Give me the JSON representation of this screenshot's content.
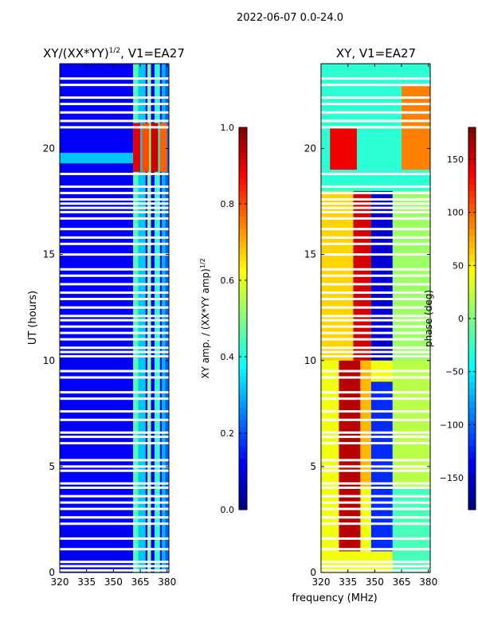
{
  "figure_title": "2022-06-07 0.0-24.0",
  "chart_data": [
    {
      "type": "heatmap",
      "title": "XY/(XX*YY)",
      "title_exponent": "1/2",
      "title_suffix": ", V1=EA27",
      "xlabel": "",
      "ylabel": "UT (hours)",
      "xlim": [
        320,
        381
      ],
      "ylim": [
        0,
        24
      ],
      "xticks": [
        "320",
        "335",
        "350",
        "365",
        "380"
      ],
      "xtick_values": [
        320,
        335,
        350,
        365,
        380
      ],
      "yticks": [
        "0",
        "5",
        "10",
        "15",
        "20"
      ],
      "ytick_values": [
        0,
        5,
        10,
        15,
        20
      ],
      "colorbar": {
        "label": "XY amp. / (XX*YY amp)",
        "label_exponent": "1/2",
        "range": [
          0.0,
          1.0
        ],
        "ticks": [
          "0.0",
          "0.2",
          "0.4",
          "0.6",
          "0.8",
          "1.0"
        ],
        "tick_values": [
          0.0,
          0.2,
          0.4,
          0.6,
          0.8,
          1.0
        ],
        "colormap": "jet"
      },
      "flagged_hours": [
        0.1,
        0.3,
        0.5,
        1.1,
        1.6,
        2.3,
        2.6,
        3.0,
        3.3,
        3.6,
        4.0,
        4.2,
        4.8,
        5.0,
        5.3,
        6.1,
        6.4,
        6.6,
        7.2,
        7.6,
        8.2,
        8.5,
        9.2,
        9.5,
        10.2,
        10.4,
        10.6,
        11.0,
        11.3,
        11.6,
        11.9,
        12.1,
        12.5,
        12.9,
        13.2,
        13.6,
        14.0,
        14.3,
        15.0,
        15.5,
        15.8,
        16.2,
        16.7,
        17.0,
        17.2,
        17.4,
        17.6,
        17.9,
        18.2,
        18.8,
        21.0,
        21.3,
        21.7,
        22.1,
        22.4,
        23.0,
        23.3
      ],
      "bands": [
        {
          "f0": 320,
          "f1": 381,
          "value": 0.12
        },
        {
          "f0": 361,
          "f1": 364,
          "value": 0.45
        },
        {
          "f0": 364,
          "f1": 368,
          "value": 0.32
        },
        {
          "f0": 369,
          "f1": 371,
          "value": 0.5
        },
        {
          "f0": 373,
          "f1": 376,
          "value": 0.42
        },
        {
          "f0": 377,
          "f1": 379,
          "value": 0.3
        },
        {
          "f0": 379,
          "f1": 381,
          "value": 0.22
        }
      ],
      "highlights": [
        {
          "f0": 320,
          "f1": 361,
          "t0": 19.3,
          "t1": 19.8,
          "value": 0.32
        },
        {
          "f0": 361,
          "f1": 365,
          "t0": 18.9,
          "t1": 21.2,
          "value": 0.9
        },
        {
          "f0": 366,
          "f1": 370,
          "t0": 18.9,
          "t1": 21.2,
          "value": 0.8
        },
        {
          "f0": 371,
          "f1": 375,
          "t0": 18.9,
          "t1": 21.2,
          "value": 0.92
        },
        {
          "f0": 376,
          "f1": 380,
          "t0": 18.9,
          "t1": 21.2,
          "value": 0.78
        }
      ]
    },
    {
      "type": "heatmap",
      "title": "XY, V1=EA27",
      "xlabel": "frequency (MHz)",
      "ylabel": "",
      "xlim": [
        320,
        381
      ],
      "ylim": [
        0,
        24
      ],
      "xticks": [
        "320",
        "335",
        "350",
        "365",
        "380"
      ],
      "xtick_values": [
        320,
        335,
        350,
        365,
        380
      ],
      "yticks": [
        "0",
        "5",
        "10",
        "15",
        "20"
      ],
      "ytick_values": [
        0,
        5,
        10,
        15,
        20
      ],
      "colorbar": {
        "label": "phase (deg)",
        "range": [
          -180,
          180
        ],
        "ticks": [
          "−150",
          "−100",
          "−50",
          "0",
          "50",
          "100",
          "150"
        ],
        "tick_values": [
          -150,
          -100,
          -50,
          0,
          50,
          100,
          150
        ],
        "colormap": "jet"
      },
      "flagged_hours": [
        0.1,
        0.3,
        0.5,
        1.1,
        1.6,
        2.3,
        2.6,
        3.0,
        3.3,
        3.6,
        4.0,
        4.2,
        4.8,
        5.0,
        5.3,
        6.1,
        6.4,
        6.6,
        7.2,
        7.6,
        8.2,
        8.5,
        9.2,
        9.5,
        10.2,
        10.4,
        10.6,
        11.0,
        11.3,
        11.6,
        11.9,
        12.1,
        12.5,
        12.9,
        13.2,
        13.6,
        14.0,
        14.3,
        15.0,
        15.5,
        15.8,
        16.2,
        16.7,
        17.0,
        17.2,
        17.4,
        17.6,
        17.9,
        18.2,
        18.8,
        21.0,
        21.3,
        21.7,
        22.1,
        22.4,
        23.0,
        23.3
      ],
      "regions": [
        {
          "f0": 320,
          "f1": 381,
          "t0": 0,
          "t1": 24,
          "value": -10
        },
        {
          "f0": 320,
          "f1": 360,
          "t0": 0,
          "t1": 10,
          "value": 40
        },
        {
          "f0": 330,
          "f1": 342,
          "t0": 1,
          "t1": 10,
          "value": 160
        },
        {
          "f0": 342,
          "f1": 348,
          "t0": 4,
          "t1": 10,
          "value": 70
        },
        {
          "f0": 348,
          "f1": 360,
          "t0": 1,
          "t1": 9,
          "value": -120
        },
        {
          "f0": 360,
          "f1": 381,
          "t0": 0,
          "t1": 4,
          "value": -20
        },
        {
          "f0": 360,
          "f1": 381,
          "t0": 4,
          "t1": 10,
          "value": 20
        },
        {
          "f0": 320,
          "f1": 338,
          "t0": 10,
          "t1": 18,
          "value": 60
        },
        {
          "f0": 338,
          "f1": 348,
          "t0": 10,
          "t1": 18,
          "value": 150
        },
        {
          "f0": 348,
          "f1": 360,
          "t0": 10,
          "t1": 18,
          "value": -150
        },
        {
          "f0": 360,
          "f1": 381,
          "t0": 10,
          "t1": 18,
          "value": 10
        },
        {
          "f0": 320,
          "f1": 381,
          "t0": 18,
          "t1": 24,
          "value": -30
        },
        {
          "f0": 325,
          "f1": 340,
          "t0": 19,
          "t1": 21,
          "value": 140
        },
        {
          "f0": 365,
          "f1": 381,
          "t0": 19,
          "t1": 23,
          "value": 90
        }
      ]
    }
  ]
}
